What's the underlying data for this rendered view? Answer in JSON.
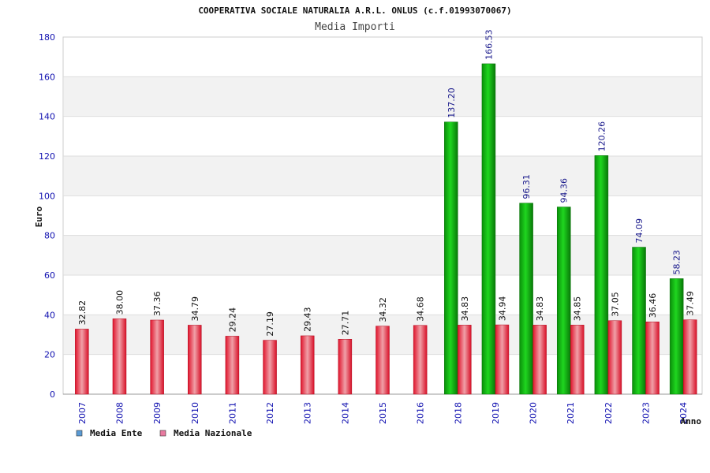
{
  "chart_data": {
    "type": "bar",
    "title": "COOPERATIVA SOCIALE NATURALIA A.R.L. ONLUS (c.f.01993070067)",
    "subtitle": "Media Importi",
    "xlabel": "Anno",
    "ylabel": "Euro",
    "ylim": [
      0,
      180
    ],
    "yticks": [
      0,
      20,
      40,
      60,
      80,
      100,
      120,
      140,
      160,
      180
    ],
    "grid": true,
    "legend_position": "bottom-left",
    "categories": [
      "2007",
      "2008",
      "2009",
      "2010",
      "2011",
      "2012",
      "2013",
      "2014",
      "2015",
      "2016",
      "2018",
      "2019",
      "2020",
      "2021",
      "2022",
      "2023",
      "2024"
    ],
    "series": [
      {
        "name": "Media Ente",
        "legend_color": "#5b9bd5",
        "bar_color": "#12b812",
        "label_color": "#1a1a8c",
        "values": [
          null,
          null,
          null,
          null,
          null,
          null,
          null,
          null,
          null,
          null,
          137.2,
          166.53,
          96.31,
          94.36,
          120.26,
          74.09,
          58.23
        ],
        "labels": [
          "",
          "",
          "",
          "",
          "",
          "",
          "",
          "",
          "",
          "",
          "137.20",
          "166.53",
          "96.31",
          "94.36",
          "120.26",
          "74.09",
          "58.23"
        ]
      },
      {
        "name": "Media Nazionale",
        "legend_color": "#e87aa0",
        "bar_color": "#e0142c",
        "label_color": "#111111",
        "values": [
          32.82,
          38.0,
          37.36,
          34.79,
          29.24,
          27.19,
          29.43,
          27.71,
          34.32,
          34.68,
          34.83,
          34.94,
          34.83,
          34.85,
          37.05,
          36.46,
          37.49
        ],
        "labels": [
          "32.82",
          "38.00",
          "37.36",
          "34.79",
          "29.24",
          "27.19",
          "29.43",
          "27.71",
          "34.32",
          "34.68",
          "34.83",
          "34.94",
          "34.83",
          "34.85",
          "37.05",
          "36.46",
          "37.49"
        ]
      }
    ]
  }
}
